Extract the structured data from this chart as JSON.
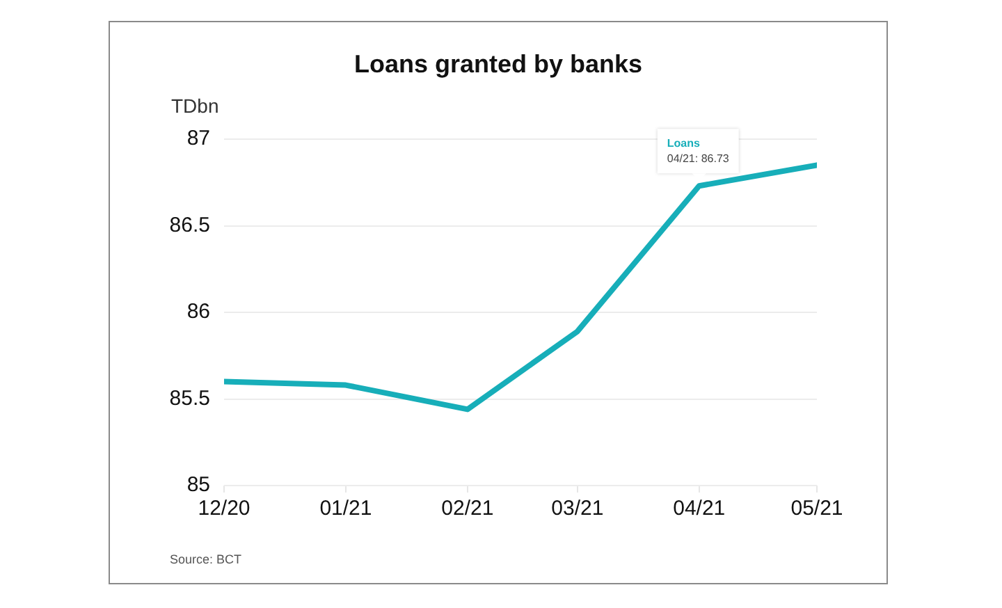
{
  "chart_data": {
    "type": "line",
    "title": "Loans granted by banks",
    "ylabel": "TDbn",
    "x": [
      "2020-12",
      "2021-01",
      "2021-02",
      "2021-03",
      "2021-04",
      "2021-05"
    ],
    "series": [
      {
        "name": "Loans",
        "color": "#17aeb9",
        "values": [
          85.6,
          85.58,
          85.44,
          85.89,
          86.73,
          86.85
        ]
      }
    ],
    "xlim": [
      "2020-12",
      "2021-05"
    ],
    "xticks": [
      {
        "value": "2020-12",
        "label": "12/20"
      },
      {
        "value": "2021-01",
        "label": "01/21"
      },
      {
        "value": "2021-02",
        "label": "02/21"
      },
      {
        "value": "2021-03",
        "label": "03/21"
      },
      {
        "value": "2021-04",
        "label": "04/21"
      },
      {
        "value": "2021-05",
        "label": "05/21"
      }
    ],
    "ylim": [
      85,
      87
    ],
    "yticks": [
      85,
      85.5,
      86,
      86.5,
      87
    ],
    "grid": "y",
    "legend": false,
    "marker": "none",
    "line_style": "solid",
    "annotations": [
      {
        "text": "04/21: 86.73",
        "x": "2021-04",
        "y": 86.73
      },
      "Source: BCT"
    ]
  }
}
